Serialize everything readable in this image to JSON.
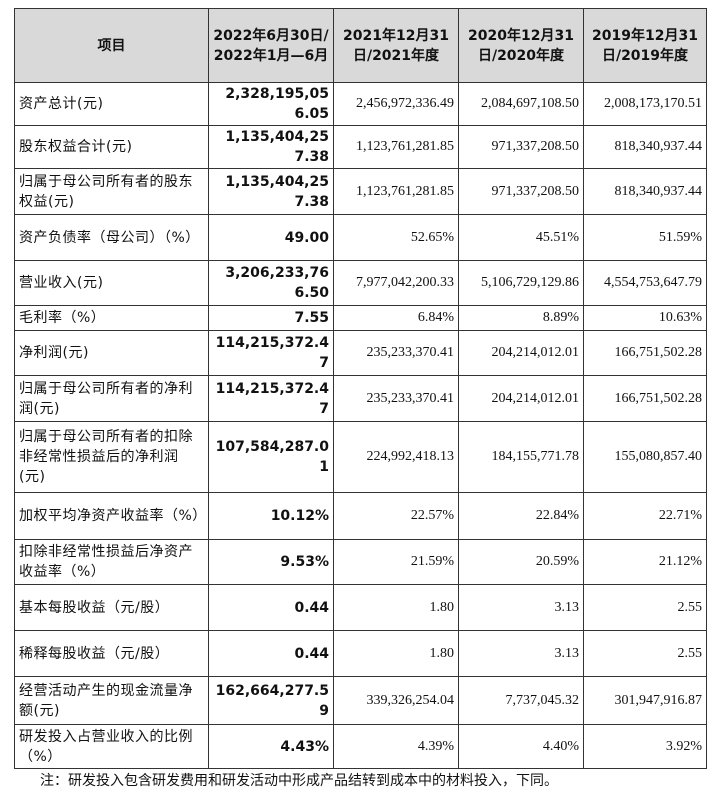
{
  "table": {
    "header": [
      "项目",
      "2022年6月30日/2022年1月—6月",
      "2021年12月31日/2021年度",
      "2020年12月31日/2020年度",
      "2019年12月31日/2019年度"
    ],
    "rows": [
      [
        "资产总计(元)",
        "2,328,195,056.05",
        "2,456,972,336.49",
        "2,084,697,108.50",
        "2,008,173,170.51"
      ],
      [
        "股东权益合计(元)",
        "1,135,404,257.38",
        "1,123,761,281.85",
        "971,337,208.50",
        "818,340,937.44"
      ],
      [
        "归属于母公司所有者的股东权益(元)",
        "1,135,404,257.38",
        "1,123,761,281.85",
        "971,337,208.50",
        "818,340,937.44"
      ],
      [
        "资产负债率（母公司）（%）",
        "49.00",
        "52.65%",
        "45.51%",
        "51.59%"
      ],
      [
        "营业收入(元)",
        "3,206,233,766.50",
        "7,977,042,200.33",
        "5,106,729,129.86",
        "4,554,753,647.79"
      ],
      [
        "毛利率（%）",
        "7.55",
        "6.84%",
        "8.89%",
        "10.63%"
      ],
      [
        "净利润(元)",
        "114,215,372.47",
        "235,233,370.41",
        "204,214,012.01",
        "166,751,502.28"
      ],
      [
        "归属于母公司所有者的净利润(元)",
        "114,215,372.47",
        "235,233,370.41",
        "204,214,012.01",
        "166,751,502.28"
      ],
      [
        "归属于母公司所有者的扣除非经常性损益后的净利润(元)",
        "107,584,287.01",
        "224,992,418.13",
        "184,155,771.78",
        "155,080,857.40"
      ],
      [
        "加权平均净资产收益率（%）",
        "10.12%",
        "22.57%",
        "22.84%",
        "22.71%"
      ],
      [
        "扣除非经常性损益后净资产收益率（%）",
        "9.53%",
        "21.59%",
        "20.59%",
        "21.12%"
      ],
      [
        "基本每股收益（元/股）",
        "0.44",
        "1.80",
        "3.13",
        "2.55"
      ],
      [
        "稀释每股收益（元/股）",
        "0.44",
        "1.80",
        "3.13",
        "2.55"
      ],
      [
        "经营活动产生的现金流量净额(元)",
        "162,664,277.59",
        "339,326,254.04",
        "7,737,045.32",
        "301,947,916.87"
      ],
      [
        "研发投入占营业收入的比例（%）",
        "4.43%",
        "4.39%",
        "4.40%",
        "3.92%"
      ]
    ]
  },
  "note": "注：研发投入包含研发费用和研发活动中形成产品结转到成本中的材料投入，下同。"
}
